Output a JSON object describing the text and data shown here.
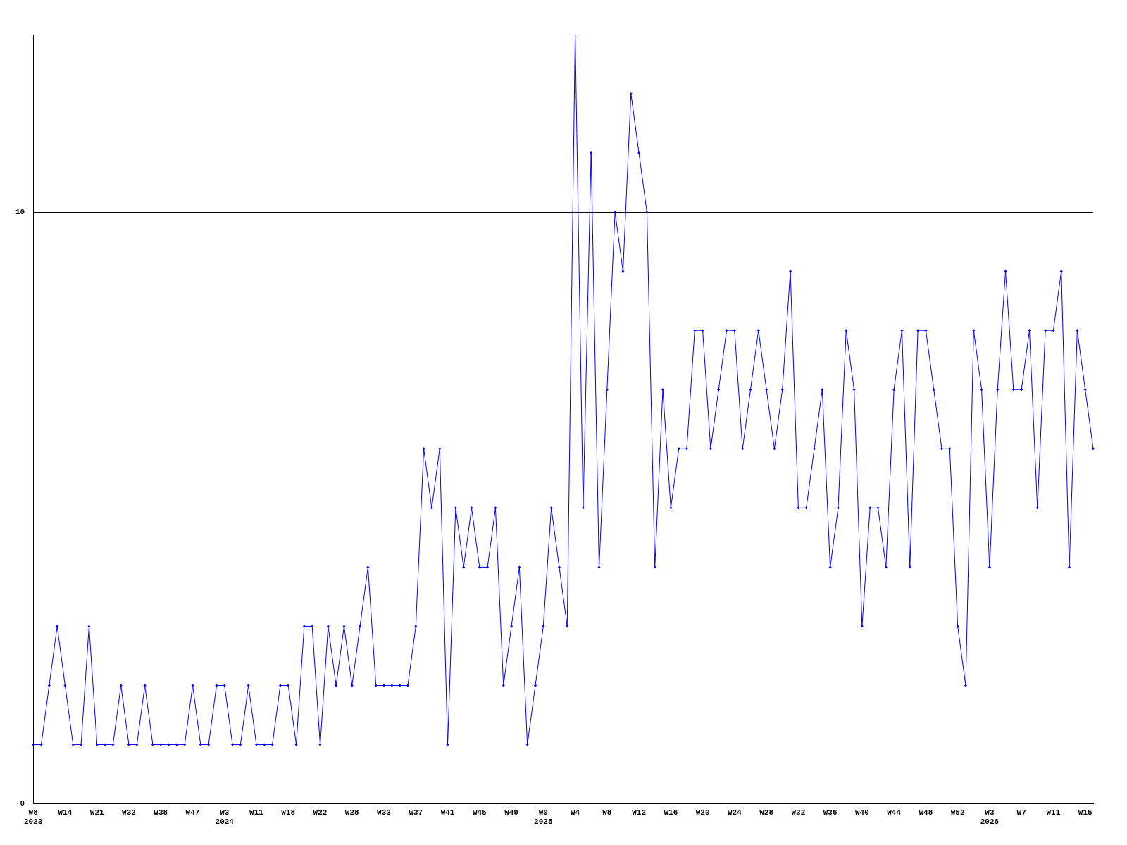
{
  "chart_data": {
    "type": "line",
    "categories": [
      "W8\n2023",
      null,
      null,
      null,
      "W14",
      null,
      null,
      null,
      "W21",
      null,
      null,
      null,
      "W32",
      null,
      null,
      null,
      "W38",
      null,
      null,
      null,
      "W47",
      null,
      null,
      null,
      "W3\n2024",
      null,
      null,
      null,
      "W11",
      null,
      null,
      null,
      "W18",
      null,
      null,
      null,
      "W22",
      null,
      null,
      null,
      "W28",
      null,
      null,
      null,
      "W33",
      null,
      null,
      null,
      "W37",
      null,
      null,
      null,
      "W41",
      null,
      null,
      null,
      "W45",
      null,
      null,
      null,
      "W49",
      null,
      null,
      null,
      "W0\n2025",
      null,
      null,
      null,
      "W4",
      null,
      null,
      null,
      "W8",
      null,
      null,
      null,
      "W12",
      null,
      null,
      null,
      "W16",
      null,
      null,
      null,
      "W20",
      null,
      null,
      null,
      "W24",
      null,
      null,
      null,
      "W28",
      null,
      null,
      null,
      "W32",
      null,
      null,
      null,
      "W36",
      null,
      null,
      null,
      "W40",
      null,
      null,
      null,
      "W44",
      null,
      null,
      null,
      "W48",
      null,
      null,
      null,
      "W52",
      null,
      null,
      null,
      "W3\n2026",
      null,
      null,
      null,
      "W7",
      null,
      null,
      null,
      "W11",
      null,
      null,
      null,
      "W15",
      null
    ],
    "series": [
      {
        "color": "#0000ff",
        "values": [
          1,
          1,
          2,
          3,
          2,
          1,
          1,
          3,
          1,
          1,
          1,
          2,
          1,
          1,
          2,
          1,
          1,
          1,
          1,
          1,
          2,
          1,
          1,
          2,
          2,
          1,
          1,
          2,
          1,
          1,
          1,
          2,
          2,
          1,
          3,
          3,
          1,
          3,
          2,
          3,
          2,
          3,
          4,
          2,
          2,
          2,
          2,
          2,
          3,
          6,
          5,
          6,
          1,
          5,
          4,
          5,
          4,
          4,
          5,
          2,
          3,
          4,
          1,
          2,
          3,
          5,
          4,
          3,
          13,
          5,
          11,
          4,
          7,
          10,
          9,
          12,
          11,
          10,
          4,
          7,
          5,
          6,
          6,
          8,
          8,
          6,
          7,
          8,
          8,
          6,
          7,
          8,
          7,
          6,
          7,
          9,
          5,
          5,
          6,
          7,
          4,
          5,
          8,
          7,
          3,
          5,
          5,
          4,
          7,
          8,
          4,
          8,
          8,
          7,
          6,
          6,
          3,
          2,
          8,
          7,
          4,
          7,
          9,
          7,
          7,
          8,
          5,
          8,
          8,
          9,
          4,
          8,
          7,
          6
        ]
      }
    ],
    "ylim": [
      0,
      13
    ],
    "yticks": [
      0,
      10
    ],
    "grid": "y",
    "marker": "diamond",
    "line_style": "solid",
    "legend": false
  }
}
